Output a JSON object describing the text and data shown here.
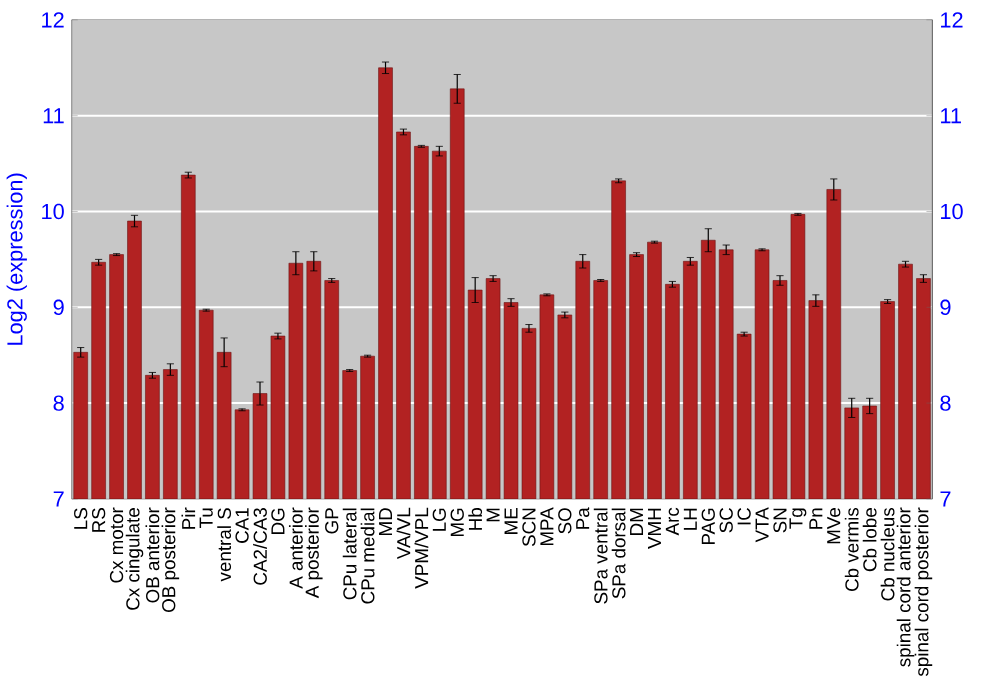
{
  "chart_data": {
    "type": "bar",
    "ylabel": "Log2 (expression)",
    "categories": [
      "LS",
      "RS",
      "Cx motor",
      "Cx cingulate",
      "OB anterior",
      "OB posterior",
      "Pir",
      "Tu",
      "ventral S",
      "CA1",
      "CA2/CA3",
      "DG",
      "A anterior",
      "A posterior",
      "GP",
      "CPu lateral",
      "CPu medial",
      "MD",
      "VA/VL",
      "VPM/VPL",
      "LG",
      "MG",
      "Hb",
      "M",
      "ME",
      "SCN",
      "MPA",
      "SO",
      "Pa",
      "SPa ventral",
      "SPa dorsal",
      "DM",
      "VMH",
      "Arc",
      "LH",
      "PAG",
      "SC",
      "IC",
      "VTA",
      "SN",
      "Tg",
      "Pn",
      "MVe",
      "Cb vermis",
      "Cb lobe",
      "Cb nucleus",
      "spinal cord anterior",
      "spinal cord posterior"
    ],
    "values": [
      8.53,
      9.47,
      9.55,
      9.9,
      8.29,
      8.35,
      10.38,
      8.97,
      8.53,
      7.93,
      8.1,
      8.7,
      9.46,
      9.48,
      9.28,
      8.34,
      8.49,
      11.5,
      10.83,
      10.68,
      10.63,
      11.28,
      9.18,
      9.3,
      9.05,
      8.78,
      9.13,
      8.92,
      9.48,
      9.28,
      10.32,
      9.55,
      9.68,
      9.24,
      9.48,
      9.7,
      9.6,
      8.72,
      9.6,
      9.28,
      9.97,
      9.07,
      10.23,
      7.95,
      7.97,
      9.06,
      9.45,
      9.3
    ],
    "errors": [
      0.05,
      0.03,
      0.01,
      0.06,
      0.03,
      0.06,
      0.03,
      0.01,
      0.15,
      0.01,
      0.12,
      0.03,
      0.12,
      0.1,
      0.02,
      0.01,
      0.01,
      0.06,
      0.03,
      0.01,
      0.05,
      0.15,
      0.13,
      0.03,
      0.04,
      0.04,
      0.01,
      0.03,
      0.07,
      0.01,
      0.02,
      0.02,
      0.01,
      0.03,
      0.04,
      0.12,
      0.05,
      0.02,
      0.01,
      0.05,
      0.01,
      0.06,
      0.11,
      0.1,
      0.08,
      0.02,
      0.03,
      0.04
    ],
    "color": "#b22222",
    "ylim": [
      7,
      12
    ],
    "yticks": [
      7,
      8,
      9,
      10,
      11,
      12
    ],
    "y2lim": [
      7,
      12
    ],
    "y2ticks": [
      7,
      8,
      9,
      10,
      11,
      12
    ],
    "grid": "y"
  }
}
